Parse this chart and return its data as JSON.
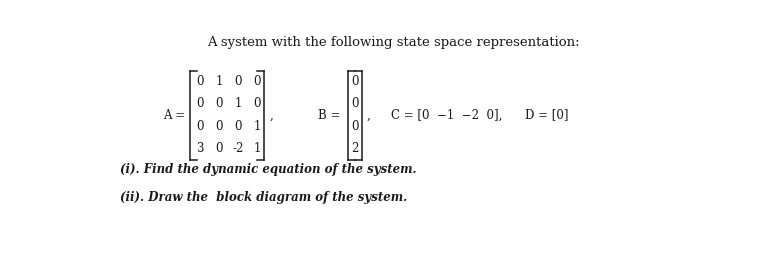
{
  "title": "A system with the following state space representation:",
  "title_fontsize": 9.5,
  "A_matrix": [
    [
      "0",
      "1",
      "0",
      "0"
    ],
    [
      "0",
      "0",
      "1",
      "0"
    ],
    [
      "0",
      "0",
      "0",
      "1"
    ],
    [
      "3",
      "0",
      "-2",
      "1"
    ]
  ],
  "B_matrix": [
    "0",
    "0",
    "0",
    "2"
  ],
  "C_label": "C = [0  −1  −2  0],",
  "D_label": "D = [0]",
  "sub_i": "(i). Find the dynamic equation of the system.",
  "sub_ii": "(ii). Draw the  block diagram of the system.",
  "bg_color": "#ffffff",
  "text_color": "#1a1a1a",
  "font_family": "DejaVu Serif",
  "body_fontsize": 8.5,
  "bracket_tick": 0.008
}
